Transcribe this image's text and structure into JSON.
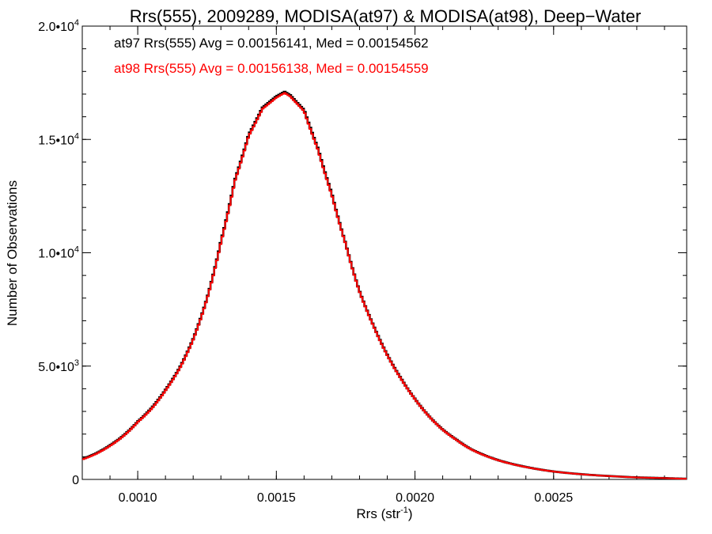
{
  "chart_data": {
    "type": "line",
    "title": "Rrs(555), 2009289, MODISA(at97) & MODISA(at98), Deep−Water",
    "xlabel": "Rrs (str",
    "xlabel_sup": "-1",
    "xlabel_close": ")",
    "ylabel": "Number of Observations",
    "xlim": [
      0.0008,
      0.00298
    ],
    "ylim": [
      0,
      20000
    ],
    "grid": false,
    "x_ticks": [
      {
        "value": 0.001,
        "label": "0.0010"
      },
      {
        "value": 0.0015,
        "label": "0.0015"
      },
      {
        "value": 0.002,
        "label": "0.0020"
      },
      {
        "value": 0.0025,
        "label": "0.0025"
      }
    ],
    "x_minor_step": 0.0001,
    "y_ticks": [
      {
        "value": 0,
        "mant": "0",
        "exp": ""
      },
      {
        "value": 5000,
        "mant": "5.0•10",
        "exp": "3"
      },
      {
        "value": 10000,
        "mant": "1.0•10",
        "exp": "4"
      },
      {
        "value": 15000,
        "mant": "1.5•10",
        "exp": "4"
      },
      {
        "value": 20000,
        "mant": "2.0•10",
        "exp": "4"
      }
    ],
    "y_minor_step": 1000,
    "annotations": [
      {
        "text": "at97 Rrs(555) Avg = 0.00156141, Med = 0.00154562",
        "color": "#000000"
      },
      {
        "text": "at98 Rrs(555) Avg = 0.00156138, Med = 0.00154559",
        "color": "#ff0000"
      }
    ],
    "series": [
      {
        "color": "#000000",
        "x": [
          0.0008,
          0.00085,
          0.0009,
          0.00095,
          0.001,
          0.00105,
          0.0011,
          0.00115,
          0.0012,
          0.00125,
          0.0013,
          0.00135,
          0.0014,
          0.00145,
          0.0015,
          0.00153,
          0.00155,
          0.0016,
          0.00165,
          0.0017,
          0.00175,
          0.0018,
          0.00185,
          0.0019,
          0.00195,
          0.002,
          0.00205,
          0.0021,
          0.00215,
          0.0022,
          0.0023,
          0.0024,
          0.0025,
          0.0026,
          0.0027,
          0.0028,
          0.0029,
          0.00298
        ],
        "y": [
          900,
          1150,
          1500,
          1950,
          2550,
          3150,
          3950,
          4900,
          6200,
          8000,
          10500,
          13200,
          15200,
          16400,
          16900,
          17100,
          16950,
          16300,
          14600,
          12600,
          10400,
          8300,
          6800,
          5500,
          4450,
          3550,
          2800,
          2200,
          1750,
          1350,
          850,
          550,
          350,
          230,
          150,
          90,
          60,
          30
        ]
      },
      {
        "color": "#ff0000",
        "x": [
          0.0008,
          0.00085,
          0.0009,
          0.00095,
          0.001,
          0.00105,
          0.0011,
          0.00115,
          0.0012,
          0.00125,
          0.0013,
          0.00135,
          0.0014,
          0.00145,
          0.0015,
          0.00153,
          0.00155,
          0.0016,
          0.00165,
          0.0017,
          0.00175,
          0.0018,
          0.00185,
          0.0019,
          0.00195,
          0.002,
          0.00205,
          0.0021,
          0.00215,
          0.0022,
          0.0023,
          0.0024,
          0.0025,
          0.0026,
          0.0027,
          0.0028,
          0.0029,
          0.00298
        ],
        "y": [
          880,
          1130,
          1480,
          1930,
          2530,
          3120,
          3920,
          4870,
          6170,
          7970,
          10450,
          13150,
          15150,
          16350,
          16850,
          17050,
          16900,
          16250,
          14550,
          12550,
          10380,
          8280,
          6780,
          5480,
          4430,
          3540,
          2790,
          2190,
          1740,
          1340,
          845,
          545,
          348,
          228,
          148,
          88,
          58,
          28
        ]
      }
    ]
  }
}
